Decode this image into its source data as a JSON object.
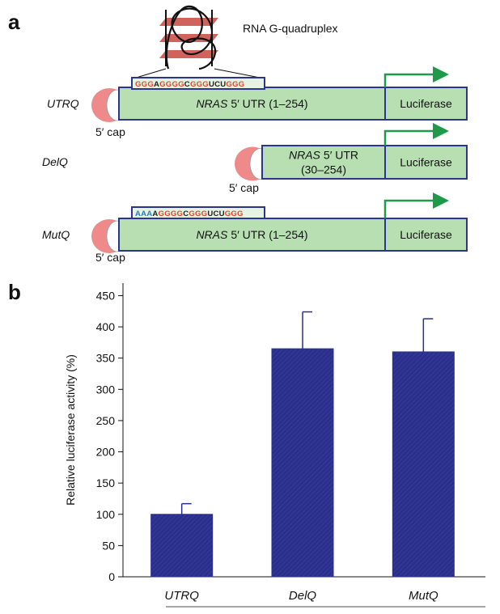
{
  "panels": [
    "a",
    "b"
  ],
  "diagram": {
    "quadruplex_label": "RNA G-quadruplex",
    "constructs": [
      {
        "name": "UTRQ",
        "gene": "NRAS",
        "utr": "5′ UTR (1–254)",
        "reporter": "Luciferase",
        "cap": "5′ cap",
        "sequence": [
          {
            "text": "GGG",
            "color": "#e2472b"
          },
          {
            "text": "A",
            "color": "#222222"
          },
          {
            "text": "GGGG",
            "color": "#e2472b"
          },
          {
            "text": "C",
            "color": "#222222"
          },
          {
            "text": "GGG",
            "color": "#e2472b"
          },
          {
            "text": "UCU",
            "color": "#222222"
          },
          {
            "text": "GGG",
            "color": "#e2472b"
          }
        ]
      },
      {
        "name": "DelQ",
        "gene": "NRAS",
        "utr": "5′ UTR",
        "utr_range": "(30–254)",
        "reporter": "Luciferase",
        "cap": "5′ cap"
      },
      {
        "name": "MutQ",
        "gene": "NRAS",
        "utr": "5′ UTR (1–254)",
        "reporter": "Luciferase",
        "cap": "5′ cap",
        "sequence": [
          {
            "text": "AAA",
            "color": "#2a7fc0"
          },
          {
            "text": "A",
            "color": "#222222"
          },
          {
            "text": "GGGG",
            "color": "#e2472b"
          },
          {
            "text": "C",
            "color": "#222222"
          },
          {
            "text": "GGG",
            "color": "#e2472b"
          },
          {
            "text": "UCU",
            "color": "#222222"
          },
          {
            "text": "GGG",
            "color": "#e2472b"
          }
        ]
      }
    ]
  },
  "chart_data": {
    "type": "bar",
    "ylabel": "Relative luciferase activity (%)",
    "categories": [
      "UTRQ",
      "DelQ",
      "MutQ"
    ],
    "values": [
      100,
      365,
      360
    ],
    "errors": [
      17,
      59,
      53
    ],
    "color": "#2b2f8c",
    "ylim": [
      0,
      470
    ],
    "yticks": [
      0,
      50,
      100,
      150,
      200,
      250,
      300,
      350,
      400,
      450
    ]
  }
}
